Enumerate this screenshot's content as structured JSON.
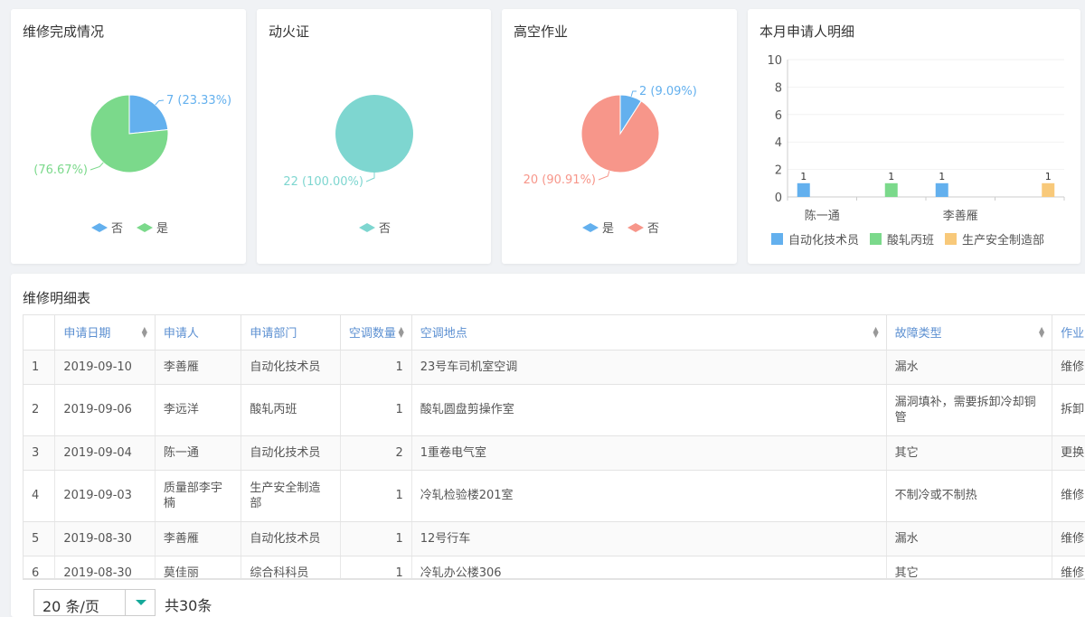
{
  "cards": [
    {
      "title": "维修完成情况",
      "slices": [
        {
          "name": "否",
          "value": 7,
          "label": "7 (23.33%)",
          "color": "#63b0ee"
        },
        {
          "name": "是",
          "value": 23,
          "label": "(76.67%)",
          "color": "#7bd98b"
        }
      ],
      "legend": [
        "否",
        "是"
      ]
    },
    {
      "title": "动火证",
      "slices": [
        {
          "name": "否",
          "value": 22,
          "label": "22 (100.00%)",
          "color": "#7ed6d0"
        }
      ],
      "legend": [
        "否"
      ]
    },
    {
      "title": "高空作业",
      "slices": [
        {
          "name": "是",
          "value": 2,
          "label": "2 (9.09%)",
          "color": "#63b0ee"
        },
        {
          "name": "否",
          "value": 20,
          "label": "20 (90.91%)",
          "color": "#f7968a"
        }
      ],
      "legend": [
        "是",
        "否"
      ]
    }
  ],
  "chart_data": {
    "type": "bar",
    "title": "本月申请人明细",
    "categories": [
      "陈一通",
      "",
      "李善雁",
      ""
    ],
    "ylim": [
      0,
      10
    ],
    "yticks": [
      0,
      2,
      4,
      6,
      8,
      10
    ],
    "grid": true,
    "legend": "bottom",
    "series": [
      {
        "name": "自动化技术员",
        "values": [
          1,
          0,
          1,
          0
        ],
        "color": "#63b0ee"
      },
      {
        "name": "酸轧丙班",
        "values": [
          0,
          1,
          0,
          0
        ],
        "color": "#7bd98b"
      },
      {
        "name": "生产安全制造部",
        "values": [
          0,
          0,
          0,
          1
        ],
        "color": "#f8c97a"
      }
    ]
  },
  "table": {
    "title": "维修明细表",
    "columns": [
      "",
      "申请日期",
      "申请人",
      "申请部门",
      "空调数量",
      "空调地点",
      "故障类型",
      "作业"
    ],
    "rows": [
      [
        "1",
        "2019-09-10",
        "李善雁",
        "自动化技术员",
        "1",
        "23号车司机室空调",
        "漏水",
        "维修"
      ],
      [
        "2",
        "2019-09-06",
        "李远洋",
        "酸轧丙班",
        "1",
        "酸轧圆盘剪操作室",
        "漏洞填补，需要拆卸冷却铜管",
        "拆卸"
      ],
      [
        "3",
        "2019-09-04",
        "陈一通",
        "自动化技术员",
        "2",
        "1重卷电气室",
        "其它",
        "更换"
      ],
      [
        "4",
        "2019-09-03",
        "质量部李宇楠",
        "生产安全制造部",
        "1",
        "冷轧检验楼201室",
        "不制冷或不制热",
        "维修"
      ],
      [
        "5",
        "2019-08-30",
        "李善雁",
        "自动化技术员",
        "1",
        "12号行车",
        "漏水",
        "维修"
      ],
      [
        "6",
        "2019-08-30",
        "莫佳丽",
        "综合科科员",
        "1",
        "冷轧办公楼306",
        "其它",
        "维修"
      ]
    ],
    "page_size": "20 条/页",
    "total": "共30条"
  }
}
